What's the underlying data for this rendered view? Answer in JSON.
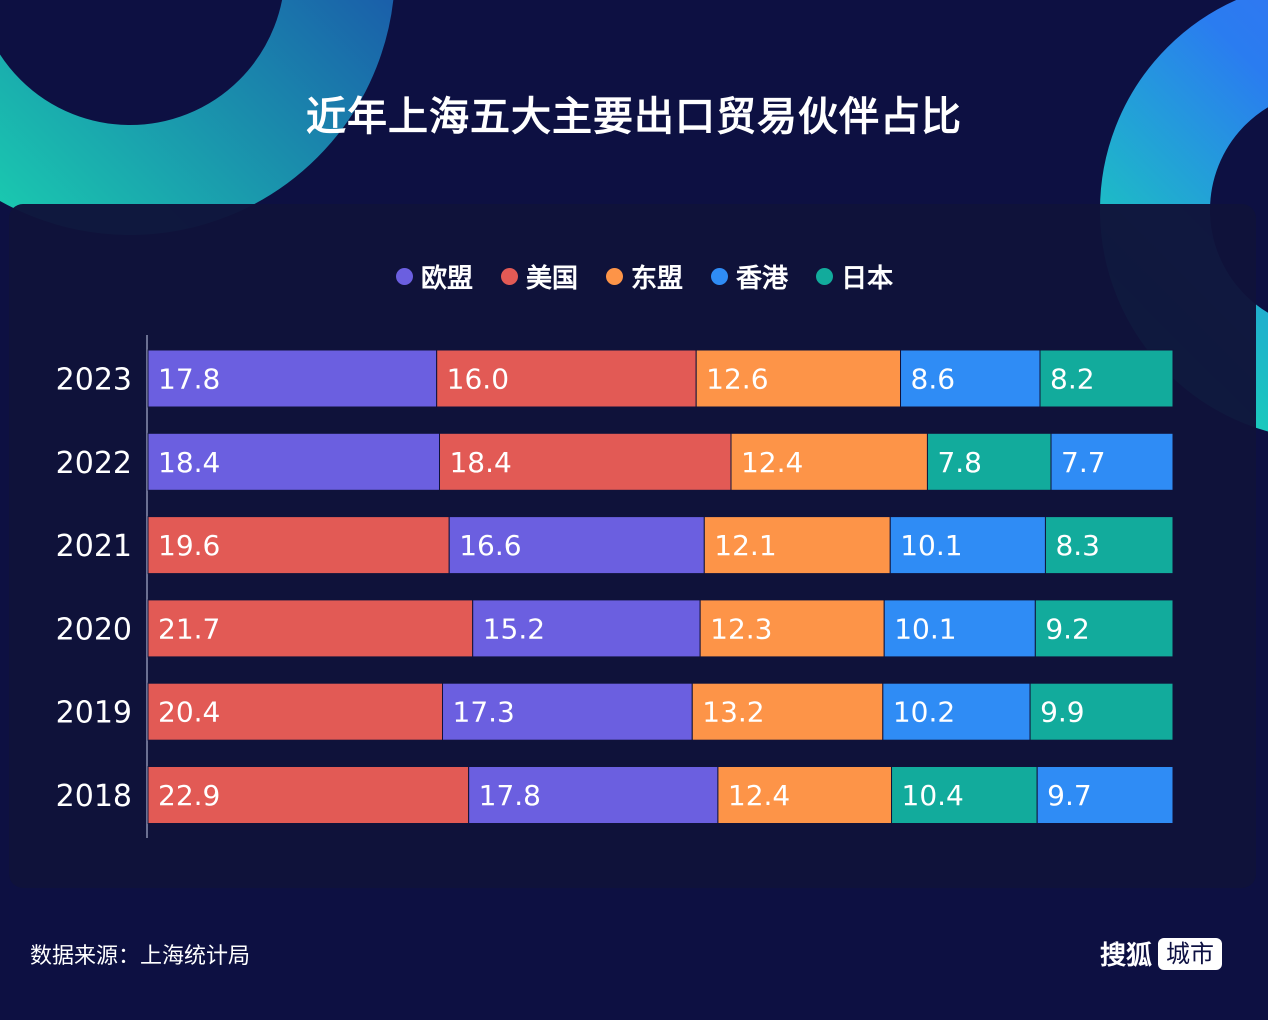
{
  "title": "近年上海五大主要出口贸易伙伴占比",
  "source": "数据来源：上海统计局",
  "logo": {
    "text": "搜狐",
    "box": "城市"
  },
  "colors": {
    "background": "#0d1042",
    "欧盟": "#6b5fe0",
    "美国": "#e25a55",
    "东盟": "#fd9448",
    "香港": "#2f8cf5",
    "日本": "#12ab9c"
  },
  "chart_data": {
    "type": "bar",
    "orientation": "horizontal",
    "stacked": true,
    "normalized": true,
    "title": "近年上海五大主要出口贸易伙伴占比",
    "legend": [
      "欧盟",
      "美国",
      "东盟",
      "香港",
      "日本"
    ],
    "legend_placement": "top",
    "grid": false,
    "categories": [
      "2023",
      "2022",
      "2021",
      "2020",
      "2019",
      "2018"
    ],
    "rows": [
      {
        "year": "2023",
        "segments": [
          {
            "name": "欧盟",
            "value": 17.8
          },
          {
            "name": "美国",
            "value": 16.0
          },
          {
            "name": "东盟",
            "value": 12.6
          },
          {
            "name": "香港",
            "value": 8.6
          },
          {
            "name": "日本",
            "value": 8.2
          }
        ]
      },
      {
        "year": "2022",
        "segments": [
          {
            "name": "欧盟",
            "value": 18.4
          },
          {
            "name": "美国",
            "value": 18.4
          },
          {
            "name": "东盟",
            "value": 12.4
          },
          {
            "name": "日本",
            "value": 7.8
          },
          {
            "name": "香港",
            "value": 7.7
          }
        ]
      },
      {
        "year": "2021",
        "segments": [
          {
            "name": "美国",
            "value": 19.6
          },
          {
            "name": "欧盟",
            "value": 16.6
          },
          {
            "name": "东盟",
            "value": 12.1
          },
          {
            "name": "香港",
            "value": 10.1
          },
          {
            "name": "日本",
            "value": 8.3
          }
        ]
      },
      {
        "year": "2020",
        "segments": [
          {
            "name": "美国",
            "value": 21.7
          },
          {
            "name": "欧盟",
            "value": 15.2
          },
          {
            "name": "东盟",
            "value": 12.3
          },
          {
            "name": "香港",
            "value": 10.1
          },
          {
            "name": "日本",
            "value": 9.2
          }
        ]
      },
      {
        "year": "2019",
        "segments": [
          {
            "name": "美国",
            "value": 20.4
          },
          {
            "name": "欧盟",
            "value": 17.3
          },
          {
            "name": "东盟",
            "value": 13.2
          },
          {
            "name": "香港",
            "value": 10.2
          },
          {
            "name": "日本",
            "value": 9.9
          }
        ]
      },
      {
        "year": "2018",
        "segments": [
          {
            "name": "美国",
            "value": 22.9
          },
          {
            "name": "欧盟",
            "value": 17.8
          },
          {
            "name": "东盟",
            "value": 12.4
          },
          {
            "name": "日本",
            "value": 10.4
          },
          {
            "name": "香港",
            "value": 9.7
          }
        ]
      }
    ]
  }
}
